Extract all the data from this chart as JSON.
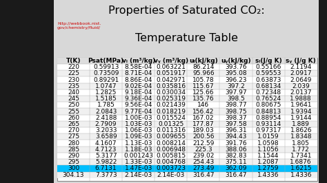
{
  "title_line1": "Properties of Saturated CO₂:",
  "title_line2": "Temperature Table",
  "url_text": "http://webbook.nist.\ngov/chemistry/fluid/",
  "headers": [
    "T(K)",
    "Psat(MPa)",
    "vₗ (m³/kg)",
    "vᵧ (m³/kg)",
    "uₗ(kJ/kg)",
    "uᵧ(kJ/kg)",
    "sₗ(J/g K)",
    "sᵧ (J/g K)"
  ],
  "rows": [
    [
      "220",
      "0.59913",
      "8.58E-04",
      "0.063221",
      "86.214",
      "393.76",
      "0.55166",
      "2.1194"
    ],
    [
      "225",
      "0.73509",
      "8.71E-04",
      "0.051917",
      "95.966",
      "395.08",
      "0.59553",
      "2.0917"
    ],
    [
      "230",
      "0.89291",
      "8.86E-04",
      "0.042971",
      "105.78",
      "396.23",
      "0.63873",
      "2.0649"
    ],
    [
      "235",
      "1.0747",
      "9.02E-04",
      "0.035816",
      "115.67",
      "397.2",
      "0.68134",
      "2.039"
    ],
    [
      "240",
      "1.2825",
      "9.18E-04",
      "0.030034",
      "125.66",
      "397.97",
      "0.72348",
      "2.0137"
    ],
    [
      "245",
      "1.5185",
      "9.36E-04",
      "0.025319",
      "135.76",
      "398.5",
      "0.76524",
      "1.9888"
    ],
    [
      "250",
      "1.785",
      "9.56E-04",
      "0.021439",
      "146",
      "398.77",
      "0.80675",
      "1.9641"
    ],
    [
      "255",
      "2.0843",
      "9.77E-04",
      "0.018219",
      "156.42",
      "398.75",
      "0.84813",
      "1.9394"
    ],
    [
      "260",
      "2.4188",
      "1.00E-03",
      "0.015524",
      "167.02",
      "398.37",
      "0.88954",
      "1.9144"
    ],
    [
      "265",
      "2.7909",
      "1.03E-03",
      "0.01325",
      "177.87",
      "397.58",
      "0.93114",
      "1.889"
    ],
    [
      "270",
      "3.2033",
      "1.06E-03",
      "0.011316",
      "189.03",
      "396.31",
      "0.97317",
      "1.8626"
    ],
    [
      "275",
      "3.6589",
      "1.09E-03",
      "0.009655",
      "200.56",
      "394.43",
      "1.0159",
      "1.8348"
    ],
    [
      "280",
      "4.1607",
      "1.13E-03",
      "0.008214",
      "212.59",
      "391.76",
      "1.0598",
      "1.805"
    ],
    [
      "285",
      "4.7123",
      "1.18E-03",
      "0.006948",
      "225.3",
      "388.06",
      "1.1056",
      "1.772"
    ],
    [
      "290",
      "5.3177",
      "0.001243",
      "0.005815",
      "239.02",
      "382.83",
      "1.1544",
      "1.7341"
    ],
    [
      "295",
      "5.9822",
      "1.33E-03",
      "0.004768",
      "254.43",
      "375.11",
      "1.2087",
      "1.6876"
    ],
    [
      "300",
      "6.7131",
      "1.47E-03",
      "0.003723",
      "273.49",
      "362.09",
      "1.2759",
      "1.6215"
    ],
    [
      "304.13",
      "7.3773",
      "2.14E-03",
      "2.14E-03",
      "316.47",
      "316.47",
      "1.4336",
      "1.4336"
    ]
  ],
  "highlight_row": 16,
  "highlight_color": "#00bfff",
  "highlight_text_color": "#000000",
  "outer_bg": "#1a1a1a",
  "content_bg": "#d8d8d8",
  "table_bg": "#e8e8e8",
  "row_bg_alt": "#c8c8c8",
  "title_color": "#000000",
  "url_color": "#cc0000",
  "font_size": 6.5,
  "header_font_size": 6.5,
  "title_fontsize": 11.5
}
